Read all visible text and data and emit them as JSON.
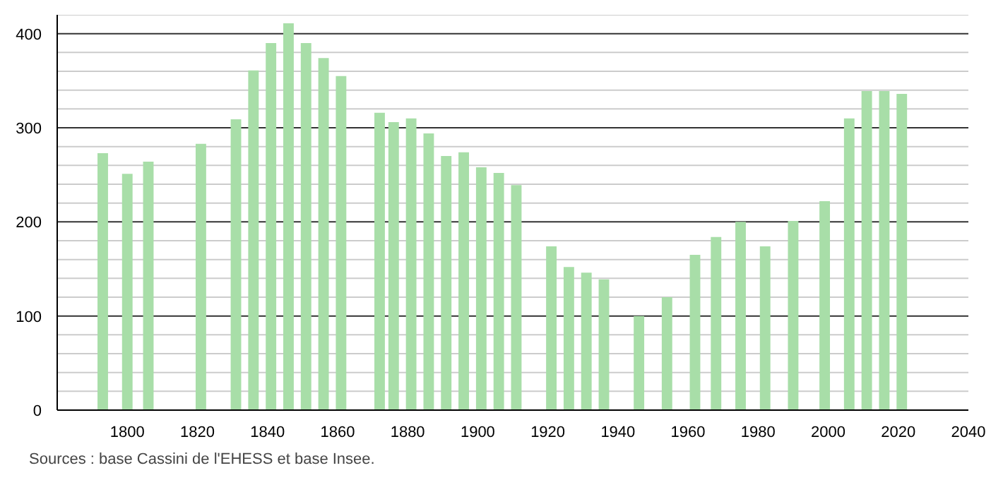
{
  "chart_data": {
    "type": "bar",
    "x": [
      1793,
      1800,
      1806,
      1821,
      1831,
      1836,
      1841,
      1846,
      1851,
      1856,
      1861,
      1872,
      1876,
      1881,
      1886,
      1891,
      1896,
      1901,
      1906,
      1911,
      1921,
      1926,
      1931,
      1936,
      1946,
      1954,
      1962,
      1968,
      1975,
      1982,
      1990,
      1999,
      2006,
      2011,
      2016,
      2021
    ],
    "values": [
      273,
      251,
      264,
      283,
      309,
      361,
      390,
      411,
      390,
      374,
      355,
      316,
      306,
      310,
      294,
      270,
      274,
      258,
      252,
      239,
      174,
      152,
      146,
      139,
      100,
      120,
      165,
      184,
      200,
      174,
      201,
      222,
      310,
      339,
      339,
      336
    ],
    "color": "#a8dea8",
    "xlim": [
      1780,
      2040
    ],
    "xticks": [
      1800,
      1820,
      1840,
      1860,
      1880,
      1900,
      1920,
      1940,
      1960,
      1980,
      2000,
      2020,
      2040
    ],
    "ylim": [
      0,
      420
    ],
    "yticks": [
      0,
      {
        "value": 20,
        "label": null
      },
      {
        "value": 40,
        "label": null
      },
      {
        "value": 60,
        "label": null
      },
      {
        "value": 80,
        "label": null
      },
      100,
      {
        "value": 120,
        "label": null
      },
      {
        "value": 140,
        "label": null
      },
      {
        "value": 160,
        "label": null
      },
      {
        "value": 180,
        "label": null
      },
      200,
      {
        "value": 220,
        "label": null
      },
      {
        "value": 240,
        "label": null
      },
      {
        "value": 260,
        "label": null
      },
      {
        "value": 280,
        "label": null
      },
      300,
      {
        "value": 320,
        "label": null
      },
      {
        "value": 340,
        "label": null
      },
      {
        "value": 360,
        "label": null
      },
      {
        "value": 380,
        "label": null
      },
      400,
      {
        "value": 420,
        "label": null
      }
    ],
    "grid": "y",
    "annotations": [
      "Sources : base Cassini de l'EHESS et base Insee."
    ]
  }
}
